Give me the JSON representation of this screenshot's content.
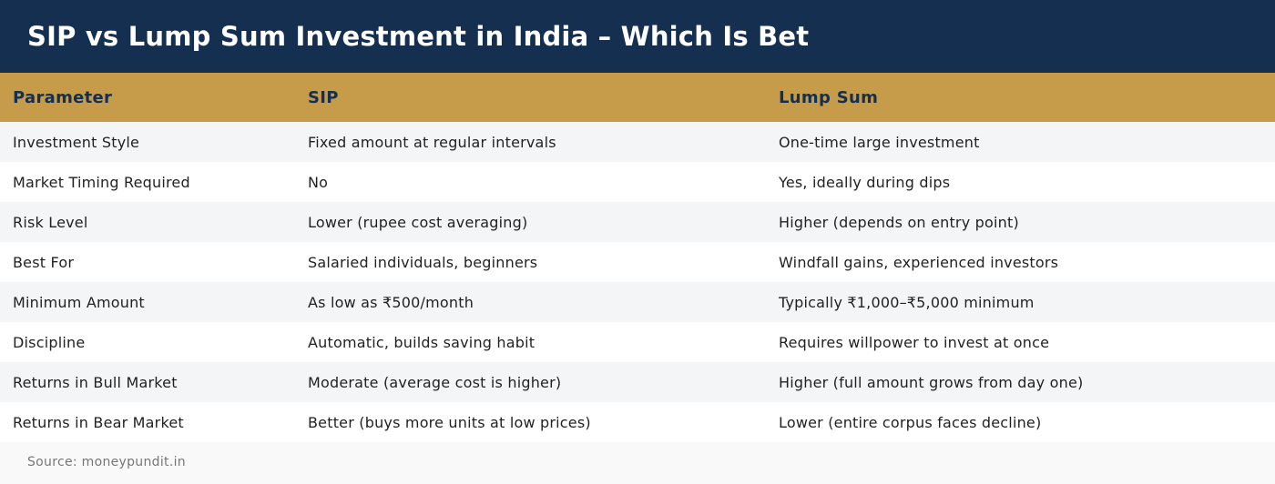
{
  "header": {
    "title": "SIP vs Lump Sum Investment in India – Which Is Bet"
  },
  "table": {
    "columns": [
      "Parameter",
      "SIP",
      "Lump Sum"
    ],
    "rows": [
      [
        "Investment Style",
        "Fixed amount at regular intervals",
        "One-time large investment"
      ],
      [
        "Market Timing Required",
        "No",
        "Yes, ideally during dips"
      ],
      [
        "Risk Level",
        "Lower (rupee cost averaging)",
        "Higher (depends on entry point)"
      ],
      [
        "Best For",
        "Salaried individuals, beginners",
        "Windfall gains, experienced investors"
      ],
      [
        "Minimum Amount",
        "As low as ₹500/month",
        "Typically ₹1,000–₹5,000 minimum"
      ],
      [
        "Discipline",
        "Automatic, builds saving habit",
        "Requires willpower to invest at once"
      ],
      [
        "Returns in Bull Market",
        "Moderate (average cost is higher)",
        "Higher (full amount grows from day one)"
      ],
      [
        "Returns in Bear Market",
        "Better (buys more units at low prices)",
        "Lower (entire corpus faces decline)"
      ]
    ]
  },
  "footer": {
    "source": "Source: moneypundit.in"
  },
  "colors": {
    "header_bg": "#142f50",
    "column_header_bg": "#c69c4b",
    "row_alt_bg": "#f4f5f7"
  }
}
